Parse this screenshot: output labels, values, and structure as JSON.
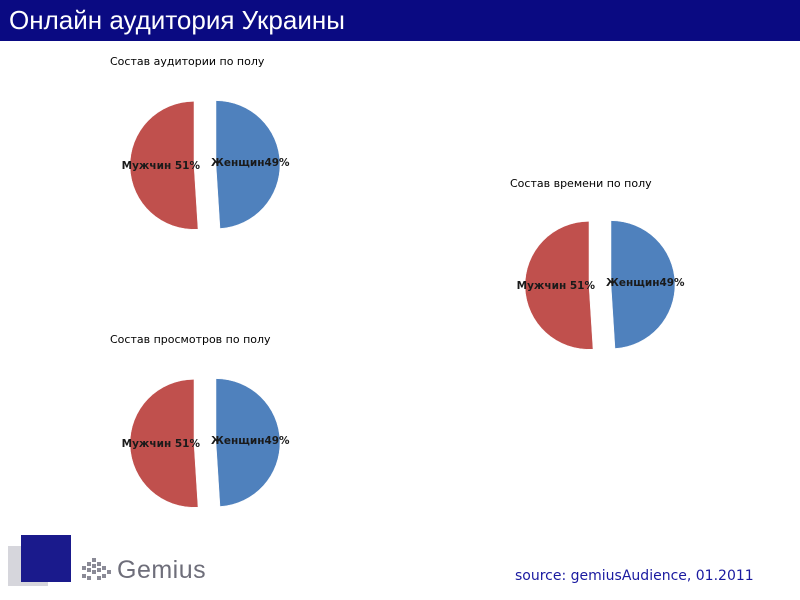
{
  "page": {
    "title": "Онлайн аудитория Украины",
    "source": "source: gemiusAudience, 01.2011",
    "logo_text": "Gemius"
  },
  "colors": {
    "title_bar": "#0a0a82",
    "male": "#c0504d",
    "female": "#4f81bd",
    "source_text": "#1a1aa0"
  },
  "chart_data": [
    {
      "type": "pie",
      "title": "Состав аудитории по полу",
      "slices": [
        {
          "label": "Мужчин",
          "value": 51,
          "display": "Мужчин 51%",
          "color": "#c0504d"
        },
        {
          "label": "Женщин",
          "value": 49,
          "display": "Женщин49%",
          "color": "#4f81bd"
        }
      ],
      "exploded": true
    },
    {
      "type": "pie",
      "title": "Состав просмотров по полу",
      "slices": [
        {
          "label": "Мужчин",
          "value": 51,
          "display": "Мужчин 51%",
          "color": "#c0504d"
        },
        {
          "label": "Женщин",
          "value": 49,
          "display": "Женщин49%",
          "color": "#4f81bd"
        }
      ],
      "exploded": true
    },
    {
      "type": "pie",
      "title": "Состав времени по полу",
      "slices": [
        {
          "label": "Мужчин",
          "value": 51,
          "display": "Мужчин 51%",
          "color": "#c0504d"
        },
        {
          "label": "Женщин",
          "value": 49,
          "display": "Женщин49%",
          "color": "#4f81bd"
        }
      ],
      "exploded": true
    }
  ]
}
